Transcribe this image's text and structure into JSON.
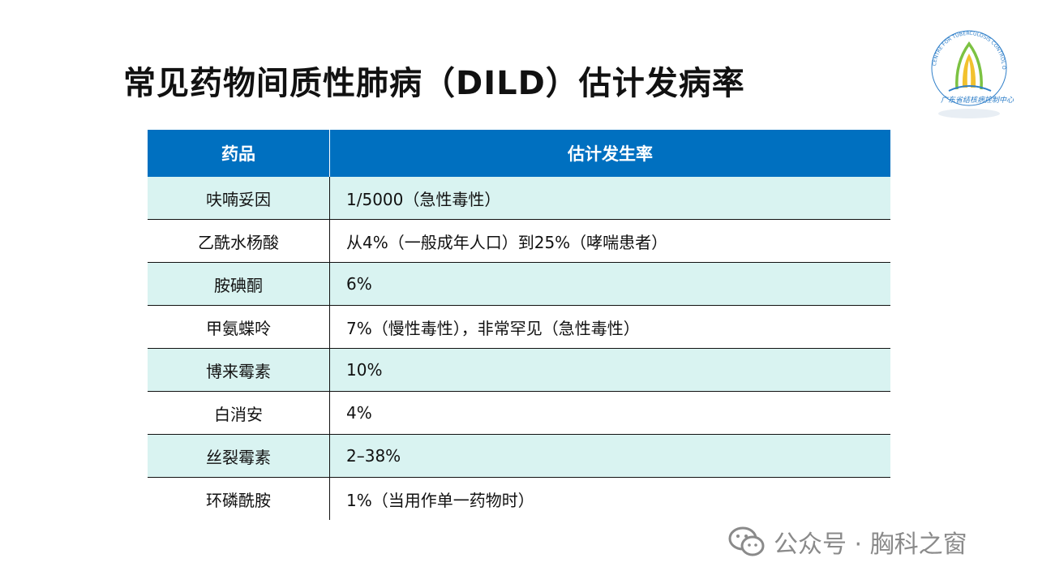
{
  "slide": {
    "title": "常见药物间质性肺病（DILD）估计发病率"
  },
  "table": {
    "headers": [
      "药品",
      "估计发生率"
    ],
    "rows": [
      {
        "drug": "呋喃妥因",
        "rate": "1/5000（急性毒性）",
        "shaded": true
      },
      {
        "drug": "乙酰水杨酸",
        "rate": "从4%（一般成年人口）到25%（哮喘患者）",
        "shaded": false
      },
      {
        "drug": "胺碘酮",
        "rate": "6%",
        "shaded": true
      },
      {
        "drug": "甲氨蝶呤",
        "rate": "7%（慢性毒性），非常罕见（急性毒性）",
        "shaded": false
      },
      {
        "drug": "博来霉素",
        "rate": "10%",
        "shaded": true
      },
      {
        "drug": "白消安",
        "rate": "4%",
        "shaded": false
      },
      {
        "drug": "丝裂霉素",
        "rate": "2–38%",
        "shaded": true
      },
      {
        "drug": "环磷酰胺",
        "rate": "1%（当用作单一药物时）",
        "shaded": false
      }
    ]
  },
  "logo": {
    "arc_text": "CENTRE FOR TUBERCULOSIS CONTROL OF GUANGDONG PROVINCE",
    "script_text": "广东省结核病控制中心",
    "colors": {
      "blue": "#2f7fc9",
      "green": "#7cc242",
      "yellow": "#f2c12e"
    }
  },
  "watermark": {
    "icon": "wechat-icon",
    "text": "公众号 · 胸科之窗"
  },
  "colors": {
    "header_bg": "#0070c0",
    "row_shade": "#d9f3f1"
  }
}
